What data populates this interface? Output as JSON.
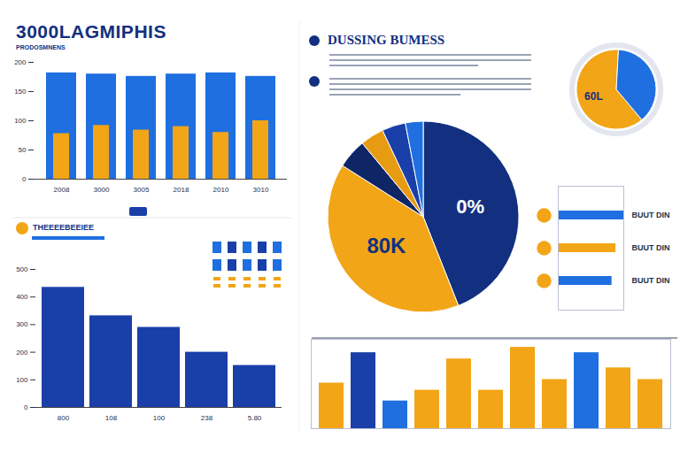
{
  "chart_data": [
    {
      "type": "bar",
      "title": "3000LAGMIPHIS",
      "subtitle": "PRODOSMNENS",
      "categories": [
        "2008",
        "3000",
        "3005",
        "2018",
        "2010",
        "3010"
      ],
      "series": [
        {
          "color": "#1f6fe0",
          "values": [
            182,
            180,
            176,
            180,
            182,
            176
          ]
        },
        {
          "color": "#f2a516",
          "values": [
            78,
            92,
            84,
            90,
            80,
            100
          ]
        }
      ],
      "ylim": [
        0,
        200
      ],
      "yticks": [
        0,
        50,
        100,
        150,
        200
      ],
      "grid": false
    },
    {
      "type": "bar",
      "title": "THEEEEBEEIEE",
      "categories": [
        "800",
        "108",
        "100",
        "238",
        "5.80"
      ],
      "values": [
        435,
        332,
        290,
        200,
        152
      ],
      "color": "#1a3fa8",
      "ylim": [
        0,
        500
      ],
      "yticks": [
        0,
        100,
        200,
        300,
        400,
        500
      ],
      "grid": false
    },
    {
      "type": "pie",
      "title": "DUSSING BUMESS",
      "values": [
        44,
        40,
        5,
        4,
        4,
        3
      ],
      "colors": [
        "#12307f",
        "#f2a516",
        "#0e2566",
        "#e79b12",
        "#1a3fa8",
        "#1f6fe0"
      ],
      "annotations": [
        "0%",
        "80K"
      ]
    },
    {
      "type": "pie",
      "values": [
        62,
        38
      ],
      "colors": [
        "#f2a516",
        "#1f6fe0"
      ],
      "annotations": [
        "60L"
      ]
    },
    {
      "type": "bar",
      "orientation": "horizontal",
      "categories": [
        "BUUT DIN",
        "BUUT DIN",
        "BUUT DIN"
      ],
      "values": [
        100,
        88,
        82
      ],
      "colors": [
        "#1f6fe0",
        "#f2a516",
        "#1f6fe0"
      ],
      "xlim": [
        0,
        100
      ],
      "tick_labels": "y"
    },
    {
      "type": "bar",
      "categories": [
        null,
        null,
        null,
        null,
        null,
        null,
        null,
        null,
        null,
        null,
        null
      ],
      "values": [
        51,
        85,
        31,
        43,
        78,
        43,
        91,
        55,
        85,
        68,
        55
      ],
      "colors": [
        "#f2a516",
        "#1a3fa8",
        "#1f6fe0",
        "#f2a516",
        "#f2a516",
        "#f2a516",
        "#f2a516",
        "#f2a516",
        "#1f6fe0",
        "#f2a516",
        "#f2a516"
      ],
      "ylim": [
        0,
        100
      ],
      "tick_labels": false
    }
  ]
}
